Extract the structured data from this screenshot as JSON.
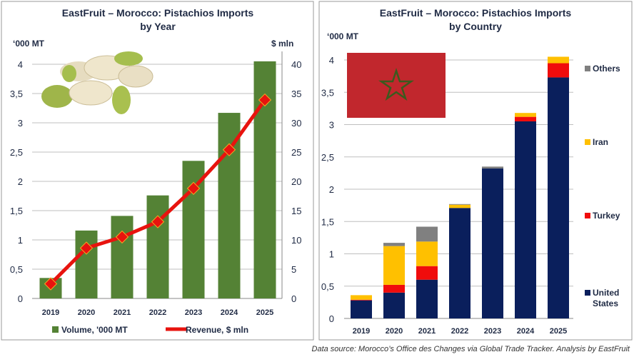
{
  "footer": {
    "source": "Data source: Morocco’s Office des Changes via Global Trade Tracker. Analysis by EastFruit"
  },
  "chart_data": [
    {
      "type": "bar+line",
      "title_line1": "EastFruit – Morocco: Pistachios Imports",
      "title_line2": "by Year",
      "ylabel": "‘000 MT",
      "y2label": "$ mln",
      "categories": [
        "2019",
        "2020",
        "2021",
        "2022",
        "2023",
        "2024",
        "2025"
      ],
      "yticks": [
        "0",
        "0,5",
        "1",
        "1,5",
        "2",
        "2,5",
        "3",
        "3,5",
        "4"
      ],
      "y2ticks": [
        "0",
        "5",
        "10",
        "15",
        "20",
        "25",
        "30",
        "35",
        "40"
      ],
      "ylim": [
        0,
        4
      ],
      "y2lim": [
        0,
        40
      ],
      "series": [
        {
          "name": "Volume, '000 MT",
          "type": "bar",
          "color": "#548235",
          "values": [
            0.35,
            1.16,
            1.41,
            1.76,
            2.35,
            3.17,
            4.05
          ]
        },
        {
          "name": "Revenue, $ mln",
          "type": "line",
          "axis": "right",
          "color": "#e8130e",
          "values": [
            2.5,
            8.6,
            10.5,
            13.1,
            18.8,
            25.4,
            33.9
          ]
        }
      ]
    },
    {
      "type": "stacked-bar",
      "title_line1": "EastFruit –  Morocco: Pistachios Imports",
      "title_line2": "by Country",
      "ylabel": "‘000 MT",
      "categories": [
        "2019",
        "2020",
        "2021",
        "2022",
        "2023",
        "2024",
        "2025"
      ],
      "yticks": [
        "0",
        "0,5",
        "1",
        "1,5",
        "2",
        "2,5",
        "3",
        "3,5",
        "4"
      ],
      "ylim": [
        0,
        4
      ],
      "series": [
        {
          "name": "United States",
          "color": "#0a1f5c",
          "values": [
            0.28,
            0.4,
            0.6,
            1.71,
            2.32,
            3.05,
            3.73
          ]
        },
        {
          "name": "Turkey",
          "color": "#f00c0c",
          "values": [
            0.01,
            0.12,
            0.21,
            0.0,
            0.0,
            0.07,
            0.22
          ]
        },
        {
          "name": "Iran",
          "color": "#ffc000",
          "values": [
            0.07,
            0.6,
            0.38,
            0.05,
            0.0,
            0.06,
            0.1
          ]
        },
        {
          "name": "Others",
          "color": "#808080",
          "values": [
            0.0,
            0.05,
            0.23,
            0.01,
            0.03,
            0.0,
            0.0
          ]
        }
      ],
      "legend_labels": {
        "others": "Others",
        "iran": "Iran",
        "turkey": "Turkey",
        "us_line1": "United",
        "us_line2": "States"
      }
    }
  ]
}
